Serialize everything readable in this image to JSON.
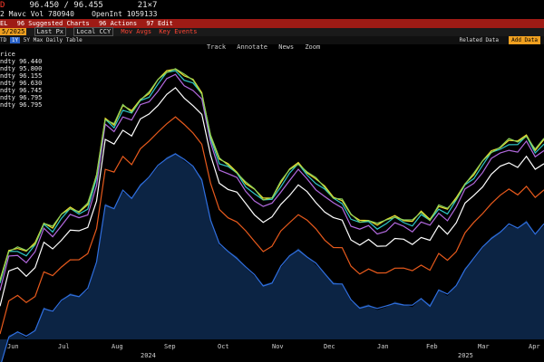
{
  "header": {
    "ticker_fragment": "D",
    "quote": "96.450 / 96.455",
    "size": "21×7",
    "row2_prefix": "2 Mavc Vol",
    "vol": "780940",
    "openint_label": "OpenInt",
    "openint": "1059133"
  },
  "menu": {
    "left_fragment": "EL",
    "suggested": "96 Suggested Charts",
    "actions": "96 Actions",
    "edit": "97 Edit"
  },
  "controls": {
    "date": "5/2025",
    "last_px": "Last Px",
    "local_ccy": "Local CCY",
    "mov_avgs": "Mov Avgs",
    "key_events": "Key Events"
  },
  "periods": {
    "items": [
      "TD",
      "1Y",
      "5Y",
      "Max",
      "Daily",
      "Table"
    ],
    "selected": "1Y",
    "related_data": "Related Data",
    "add_data": "Add Data"
  },
  "toolbar": {
    "track": "Track",
    "annotate": "Annotate",
    "news": "News",
    "zoom": "Zoom"
  },
  "legend": {
    "title": "rice",
    "items": [
      {
        "label": "ndty",
        "value": "96.440"
      },
      {
        "label": "ndty",
        "value": "95.800"
      },
      {
        "label": "ndty",
        "value": "96.155"
      },
      {
        "label": "ndty",
        "value": "96.630"
      },
      {
        "label": "ndty",
        "value": "96.745"
      },
      {
        "label": "ndty",
        "value": "96.795"
      },
      {
        "label": "ndty",
        "value": "96.795"
      }
    ]
  },
  "xaxis": {
    "months": [
      "Jun",
      "Jul",
      "Aug",
      "Sep",
      "Oct",
      "Nov",
      "Dec",
      "Jan",
      "Feb",
      "Mar",
      "Apr"
    ],
    "years": [
      "2024",
      "2025"
    ]
  },
  "chart_data": {
    "type": "line",
    "x_label_count": 11,
    "series_colors": [
      "#2f6fe0",
      "#e85a1c",
      "#ffffff",
      "#b36ae0",
      "#30c8c8",
      "#f0e030",
      "#8ad05a"
    ],
    "base_curve": [
      25,
      48,
      50,
      46,
      52,
      68,
      64,
      72,
      78,
      76,
      80,
      100,
      142,
      138,
      150,
      146,
      156,
      160,
      168,
      175,
      178,
      172,
      168,
      160,
      130,
      112,
      108,
      104,
      96,
      90,
      84,
      86,
      96,
      104,
      110,
      104,
      98,
      92,
      86,
      84,
      72,
      68,
      70,
      66,
      68,
      72,
      70,
      68,
      74,
      70,
      80,
      76,
      84,
      96,
      102,
      110,
      118,
      122,
      126,
      124,
      130,
      120,
      126
    ],
    "offsets": [
      -45,
      -20,
      0,
      10,
      14,
      16,
      16
    ]
  }
}
